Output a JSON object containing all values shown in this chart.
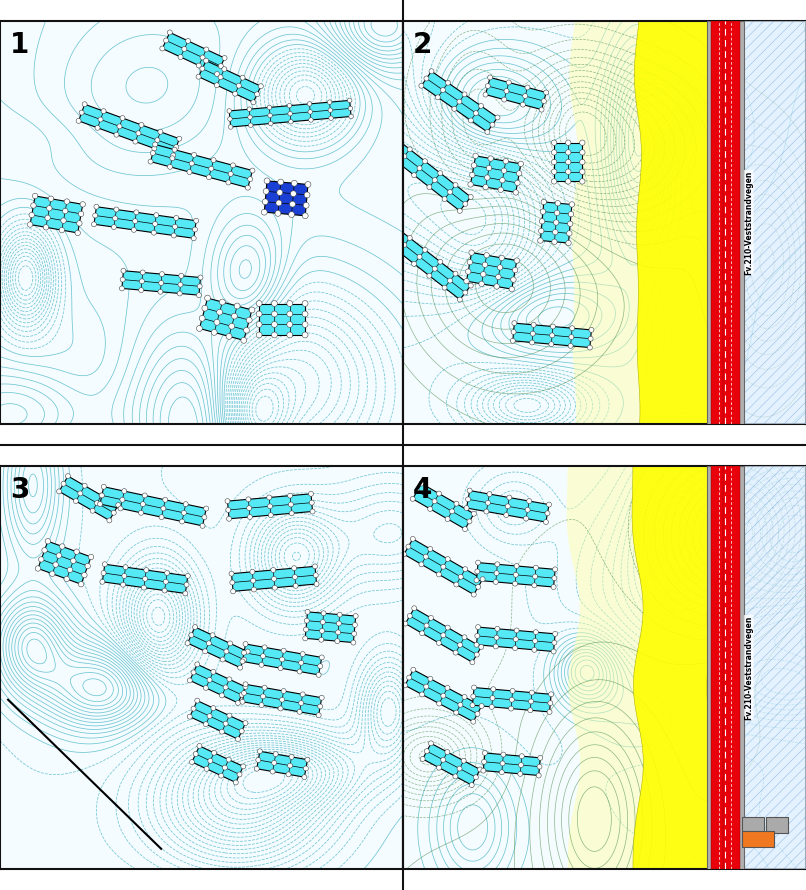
{
  "background_color": "#ffffff",
  "map_bg": "#f5fcff",
  "contour_color": "#4db8c8",
  "building_cyan": "#55e8f5",
  "building_blue": "#1a3fd4",
  "yellow_zone": "#ffff00",
  "yellow_zone2": "#ffffaa",
  "red_road": "#e8000a",
  "gray_road": "#b0b0b0",
  "hatch_line_color": "#88aadd",
  "panel_labels": [
    "1",
    "2",
    "3",
    "4"
  ],
  "panel_label_size": 20,
  "divider_color": "#111111",
  "divider_lw": 1.5,
  "road_label": "Fv.210-Veststrandvegen",
  "road_label_size": 5.5,
  "contour_lw": 0.55,
  "green_contour": "#448844"
}
